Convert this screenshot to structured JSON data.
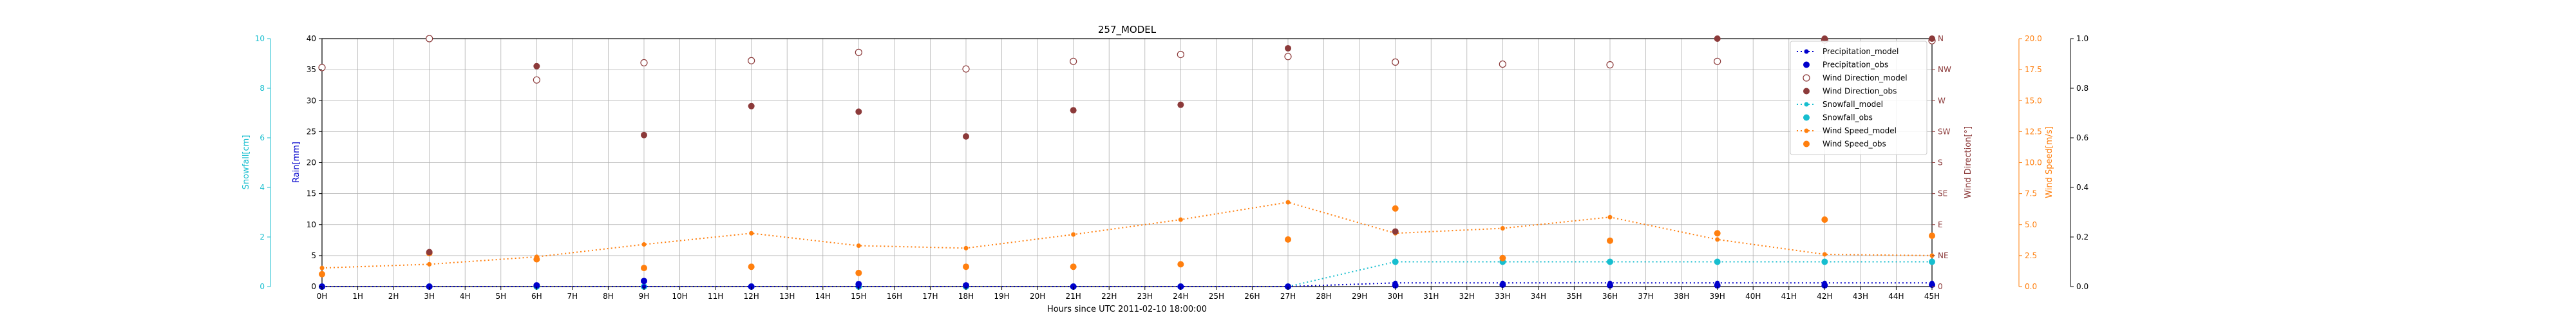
{
  "chart_data": {
    "type": "scatter",
    "title": "257_MODEL",
    "xlabel": "Hours since UTC 2011-02-10 18:00:00",
    "x_range": [
      0,
      45
    ],
    "x_tick_labels": [
      "0H",
      "1H",
      "2H",
      "3H",
      "4H",
      "5H",
      "6H",
      "7H",
      "8H",
      "9H",
      "10H",
      "11H",
      "12H",
      "13H",
      "14H",
      "15H",
      "16H",
      "17H",
      "18H",
      "19H",
      "20H",
      "21H",
      "22H",
      "23H",
      "24H",
      "25H",
      "26H",
      "27H",
      "28H",
      "29H",
      "30H",
      "31H",
      "32H",
      "33H",
      "34H",
      "35H",
      "36H",
      "37H",
      "38H",
      "39H",
      "40H",
      "41H",
      "42H",
      "43H",
      "44H",
      "45H"
    ],
    "grid": true,
    "legend_position": "top-right",
    "axes": {
      "rain": {
        "label": "Rain[mm]",
        "range": [
          0,
          40
        ],
        "ticks": [
          "0",
          "5",
          "10",
          "15",
          "20",
          "25",
          "30",
          "35",
          "40"
        ],
        "color": "#0000cc"
      },
      "snowfall": {
        "label": "Snowfall[cm]",
        "range": [
          0,
          10
        ],
        "ticks": [
          "0",
          "2",
          "4",
          "6",
          "8",
          "10"
        ],
        "color": "#17becf"
      },
      "wind_direction": {
        "label": "Wind Direction[°]",
        "range": [
          0,
          360
        ],
        "ticks": [
          "0",
          "NE",
          "E",
          "SE",
          "S",
          "SW",
          "W",
          "NW",
          "N"
        ],
        "color": "#8c3a3a"
      },
      "wind_speed": {
        "label": "Wind Speed[m/s]",
        "range": [
          0,
          20
        ],
        "ticks": [
          "0.0",
          "2.5",
          "5.0",
          "7.5",
          "10.0",
          "12.5",
          "15.0",
          "17.5",
          "20.0"
        ],
        "color": "#ff7f0e"
      },
      "extra": {
        "range": [
          0,
          1
        ],
        "ticks": [
          "0.0",
          "0.2",
          "0.4",
          "0.6",
          "0.8",
          "1.0"
        ]
      }
    },
    "series": [
      {
        "name": "Precipitation_model",
        "axis": "rain",
        "style": "dotted-line-markers",
        "color": "#0000cc",
        "x": [
          0,
          3,
          6,
          9,
          12,
          15,
          18,
          21,
          24,
          27,
          30,
          33,
          36,
          39,
          42,
          45
        ],
        "y": [
          0,
          0,
          0,
          0,
          0,
          0,
          0,
          0,
          0,
          0,
          0.6,
          0.6,
          0.6,
          0.6,
          0.6,
          0.6
        ]
      },
      {
        "name": "Precipitation_obs",
        "axis": "rain",
        "style": "points",
        "color": "#0000cc",
        "x": [
          0,
          3,
          6,
          9,
          12,
          15,
          18,
          21,
          24,
          27,
          30,
          33,
          36,
          39,
          42,
          45
        ],
        "y": [
          0,
          0,
          0.2,
          0.9,
          0,
          0.4,
          0.2,
          0,
          0,
          0,
          0.2,
          0.3,
          0.2,
          0.2,
          0.2,
          0.3
        ]
      },
      {
        "name": "Wind Direction_model",
        "axis": "wind_direction",
        "style": "open-circles",
        "color": "#8c3a3a",
        "x": [
          0,
          3,
          6,
          9,
          12,
          15,
          18,
          21,
          24,
          27,
          30,
          33,
          36,
          39,
          42,
          45
        ],
        "y": [
          318,
          360,
          300,
          325,
          328,
          340,
          316,
          327,
          337,
          334,
          326,
          323,
          322,
          327,
          358,
          357
        ]
      },
      {
        "name": "Wind Direction_obs",
        "axis": "wind_direction",
        "style": "points",
        "color": "#8c3a3a",
        "x": [
          3,
          6,
          9,
          12,
          15,
          18,
          21,
          24,
          27,
          30,
          39,
          42,
          45
        ],
        "y": [
          50,
          320,
          220,
          262,
          254,
          218,
          256,
          264,
          346,
          80,
          360,
          360,
          360
        ]
      },
      {
        "name": "Snowfall_model",
        "axis": "snowfall",
        "style": "dotted-line-markers",
        "color": "#17becf",
        "x": [
          0,
          3,
          6,
          9,
          12,
          15,
          18,
          21,
          24,
          27,
          30,
          33,
          36,
          39,
          42,
          45
        ],
        "y": [
          0,
          0,
          0,
          0,
          0,
          0,
          0,
          0,
          0,
          0,
          1.0,
          1.0,
          1.0,
          1.0,
          1.0,
          1.0
        ]
      },
      {
        "name": "Snowfall_obs",
        "axis": "snowfall",
        "style": "points",
        "color": "#17becf",
        "x": [
          0,
          3,
          6,
          9,
          12,
          15,
          18,
          21,
          24,
          27,
          30,
          33,
          36,
          39,
          42,
          45
        ],
        "y": [
          0,
          0,
          0,
          0,
          0,
          0,
          0,
          0,
          0,
          0,
          1.0,
          1.0,
          1.0,
          1.0,
          1.0,
          1.0
        ]
      },
      {
        "name": "Wind Speed_model",
        "axis": "wind_speed",
        "style": "dotted-line-markers",
        "color": "#ff7f0e",
        "x": [
          0,
          3,
          6,
          9,
          12,
          15,
          18,
          21,
          24,
          27,
          30,
          33,
          36,
          39,
          42,
          45
        ],
        "y": [
          1.5,
          1.8,
          2.4,
          3.4,
          4.3,
          3.3,
          3.1,
          4.2,
          5.4,
          6.8,
          4.3,
          4.7,
          5.6,
          3.8,
          2.6,
          2.5
        ]
      },
      {
        "name": "Wind Speed_obs",
        "axis": "wind_speed",
        "style": "points",
        "color": "#ff7f0e",
        "x": [
          0,
          3,
          6,
          9,
          12,
          15,
          18,
          21,
          24,
          27,
          30,
          33,
          36,
          39,
          42,
          45
        ],
        "y": [
          1.0,
          2.7,
          2.2,
          1.5,
          1.6,
          1.1,
          1.6,
          1.6,
          1.8,
          3.8,
          6.3,
          2.3,
          3.7,
          4.3,
          5.4,
          4.1
        ]
      }
    ]
  }
}
